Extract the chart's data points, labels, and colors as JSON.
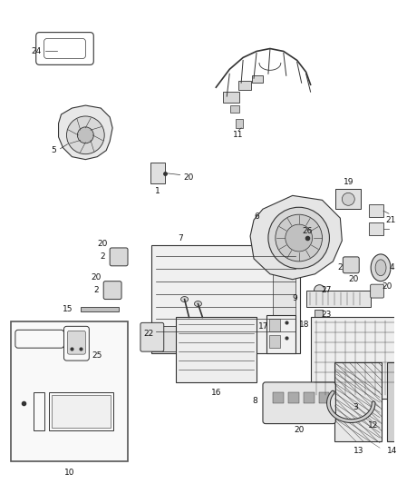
{
  "background_color": "#ffffff",
  "fig_width": 4.38,
  "fig_height": 5.33,
  "dpi": 100,
  "line_color": "#333333",
  "label_fontsize": 6.5
}
